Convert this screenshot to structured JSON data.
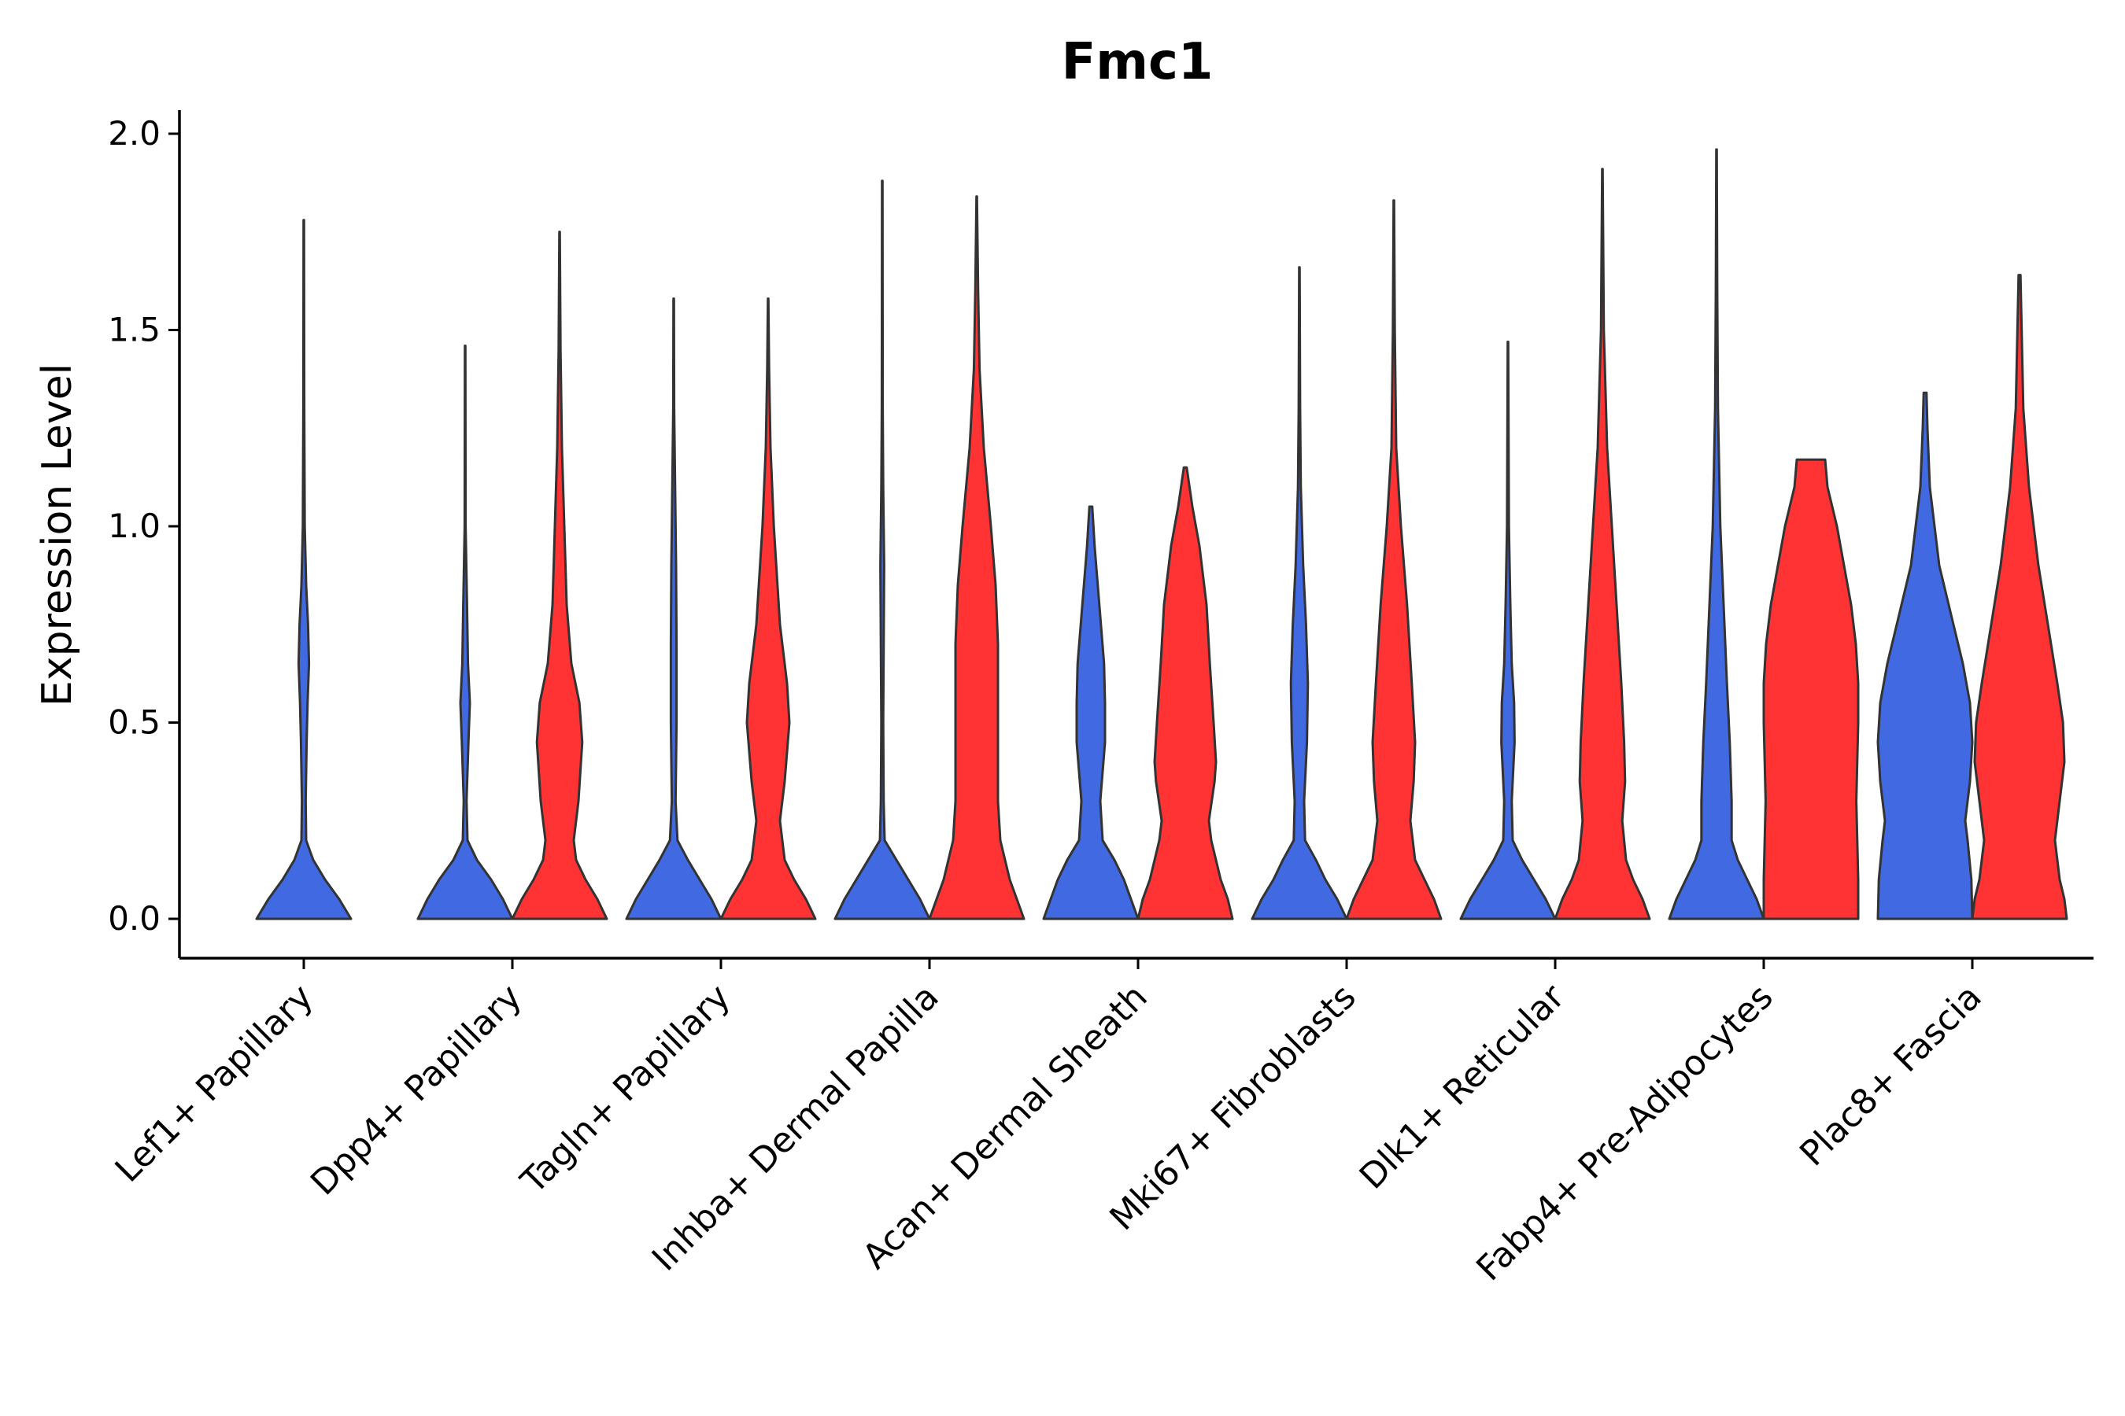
{
  "chart_data": {
    "type": "violin",
    "title": "Fmc1",
    "xlabel": "",
    "ylabel": "Expression Level",
    "ylim": [
      -0.1,
      2.05
    ],
    "yticks": [
      0.0,
      0.5,
      1.0,
      1.5,
      2.0
    ],
    "ytick_labels": [
      "0.0",
      "0.5",
      "1.0",
      "1.5",
      "2.0"
    ],
    "categories": [
      "Lef1+ Papillary",
      "Dpp4+ Papillary",
      "Tagln+ Papillary",
      "Inhba+ Dermal Papilla",
      "Acan+ Dermal Sheath",
      "Mki67+ Fibroblasts",
      "Dlk1+ Reticular",
      "Fabp4+ Pre-Adipocytes",
      "Plac8+ Fascia"
    ],
    "colors": {
      "blue": "#4169E1",
      "red": "#FF3333",
      "outline": "#333333"
    },
    "violins": [
      {
        "category": "Lef1+ Papillary",
        "color": "blue",
        "max": 1.78,
        "profile": [
          [
            0.0,
            1.0
          ],
          [
            0.05,
            0.75
          ],
          [
            0.1,
            0.45
          ],
          [
            0.15,
            0.2
          ],
          [
            0.2,
            0.05
          ],
          [
            0.3,
            0.04
          ],
          [
            0.45,
            0.06
          ],
          [
            0.55,
            0.08
          ],
          [
            0.65,
            0.11
          ],
          [
            0.75,
            0.09
          ],
          [
            0.85,
            0.05
          ],
          [
            1.0,
            0.02
          ],
          [
            1.3,
            0.01
          ],
          [
            1.78,
            0.005
          ]
        ]
      },
      {
        "category": "Dpp4+ Papillary",
        "color": "blue",
        "max": 1.46,
        "profile": [
          [
            0.0,
            1.0
          ],
          [
            0.05,
            0.8
          ],
          [
            0.1,
            0.55
          ],
          [
            0.15,
            0.25
          ],
          [
            0.2,
            0.05
          ],
          [
            0.3,
            0.03
          ],
          [
            0.45,
            0.07
          ],
          [
            0.55,
            0.1
          ],
          [
            0.65,
            0.06
          ],
          [
            0.8,
            0.04
          ],
          [
            1.0,
            0.01
          ],
          [
            1.46,
            0.005
          ]
        ]
      },
      {
        "category": "Dpp4+ Papillary",
        "color": "red",
        "max": 1.75,
        "profile": [
          [
            0.0,
            1.0
          ],
          [
            0.05,
            0.8
          ],
          [
            0.1,
            0.55
          ],
          [
            0.15,
            0.35
          ],
          [
            0.2,
            0.3
          ],
          [
            0.3,
            0.4
          ],
          [
            0.45,
            0.48
          ],
          [
            0.55,
            0.42
          ],
          [
            0.65,
            0.25
          ],
          [
            0.8,
            0.15
          ],
          [
            1.0,
            0.1
          ],
          [
            1.2,
            0.05
          ],
          [
            1.45,
            0.02
          ],
          [
            1.75,
            0.005
          ]
        ]
      },
      {
        "category": "Tagln+ Papillary",
        "color": "blue",
        "max": 1.58,
        "profile": [
          [
            0.0,
            1.0
          ],
          [
            0.05,
            0.8
          ],
          [
            0.1,
            0.55
          ],
          [
            0.15,
            0.3
          ],
          [
            0.2,
            0.08
          ],
          [
            0.3,
            0.04
          ],
          [
            0.5,
            0.06
          ],
          [
            0.7,
            0.06
          ],
          [
            0.9,
            0.05
          ],
          [
            1.1,
            0.03
          ],
          [
            1.3,
            0.01
          ],
          [
            1.58,
            0.005
          ]
        ]
      },
      {
        "category": "Tagln+ Papillary",
        "color": "red",
        "max": 1.58,
        "profile": [
          [
            0.0,
            1.0
          ],
          [
            0.05,
            0.8
          ],
          [
            0.1,
            0.55
          ],
          [
            0.15,
            0.35
          ],
          [
            0.25,
            0.25
          ],
          [
            0.35,
            0.35
          ],
          [
            0.5,
            0.45
          ],
          [
            0.6,
            0.4
          ],
          [
            0.75,
            0.25
          ],
          [
            1.0,
            0.12
          ],
          [
            1.2,
            0.05
          ],
          [
            1.4,
            0.02
          ],
          [
            1.58,
            0.005
          ]
        ]
      },
      {
        "category": "Inhba+ Dermal Papilla",
        "color": "blue",
        "max": 1.88,
        "profile": [
          [
            0.0,
            1.0
          ],
          [
            0.05,
            0.8
          ],
          [
            0.1,
            0.55
          ],
          [
            0.15,
            0.3
          ],
          [
            0.2,
            0.05
          ],
          [
            0.3,
            0.03
          ],
          [
            0.5,
            0.02
          ],
          [
            0.7,
            0.03
          ],
          [
            0.9,
            0.04
          ],
          [
            1.1,
            0.02
          ],
          [
            1.3,
            0.01
          ],
          [
            1.88,
            0.005
          ]
        ]
      },
      {
        "category": "Inhba+ Dermal Papilla",
        "color": "red",
        "max": 1.84,
        "profile": [
          [
            0.0,
            1.0
          ],
          [
            0.05,
            0.85
          ],
          [
            0.1,
            0.7
          ],
          [
            0.2,
            0.5
          ],
          [
            0.3,
            0.45
          ],
          [
            0.5,
            0.45
          ],
          [
            0.7,
            0.45
          ],
          [
            0.85,
            0.4
          ],
          [
            1.0,
            0.3
          ],
          [
            1.2,
            0.15
          ],
          [
            1.4,
            0.06
          ],
          [
            1.6,
            0.03
          ],
          [
            1.84,
            0.005
          ]
        ]
      },
      {
        "category": "Acan+ Dermal Sheath",
        "color": "blue",
        "max": 1.05,
        "profile": [
          [
            0.0,
            1.0
          ],
          [
            0.05,
            0.85
          ],
          [
            0.1,
            0.7
          ],
          [
            0.15,
            0.5
          ],
          [
            0.2,
            0.25
          ],
          [
            0.3,
            0.2
          ],
          [
            0.45,
            0.3
          ],
          [
            0.55,
            0.3
          ],
          [
            0.65,
            0.28
          ],
          [
            0.8,
            0.18
          ],
          [
            0.95,
            0.08
          ],
          [
            1.05,
            0.03
          ]
        ]
      },
      {
        "category": "Acan+ Dermal Sheath",
        "color": "red",
        "max": 1.15,
        "profile": [
          [
            0.0,
            1.0
          ],
          [
            0.05,
            0.9
          ],
          [
            0.1,
            0.75
          ],
          [
            0.2,
            0.55
          ],
          [
            0.25,
            0.5
          ],
          [
            0.35,
            0.62
          ],
          [
            0.4,
            0.65
          ],
          [
            0.5,
            0.6
          ],
          [
            0.65,
            0.52
          ],
          [
            0.8,
            0.45
          ],
          [
            0.95,
            0.3
          ],
          [
            1.05,
            0.15
          ],
          [
            1.15,
            0.03
          ]
        ]
      },
      {
        "category": "Mki67+ Fibroblasts",
        "color": "blue",
        "max": 1.66,
        "profile": [
          [
            0.0,
            1.0
          ],
          [
            0.05,
            0.8
          ],
          [
            0.1,
            0.55
          ],
          [
            0.15,
            0.35
          ],
          [
            0.2,
            0.12
          ],
          [
            0.3,
            0.1
          ],
          [
            0.45,
            0.16
          ],
          [
            0.6,
            0.18
          ],
          [
            0.75,
            0.14
          ],
          [
            0.9,
            0.08
          ],
          [
            1.1,
            0.03
          ],
          [
            1.3,
            0.015
          ],
          [
            1.66,
            0.005
          ]
        ]
      },
      {
        "category": "Mki67+ Fibroblasts",
        "color": "red",
        "max": 1.83,
        "profile": [
          [
            0.0,
            1.0
          ],
          [
            0.05,
            0.85
          ],
          [
            0.1,
            0.65
          ],
          [
            0.15,
            0.45
          ],
          [
            0.25,
            0.35
          ],
          [
            0.35,
            0.42
          ],
          [
            0.45,
            0.45
          ],
          [
            0.6,
            0.38
          ],
          [
            0.8,
            0.28
          ],
          [
            1.0,
            0.15
          ],
          [
            1.2,
            0.05
          ],
          [
            1.5,
            0.02
          ],
          [
            1.83,
            0.005
          ]
        ]
      },
      {
        "category": "Dlk1+ Reticular",
        "color": "blue",
        "max": 1.47,
        "profile": [
          [
            0.0,
            1.0
          ],
          [
            0.05,
            0.8
          ],
          [
            0.1,
            0.55
          ],
          [
            0.15,
            0.3
          ],
          [
            0.2,
            0.1
          ],
          [
            0.3,
            0.08
          ],
          [
            0.45,
            0.14
          ],
          [
            0.55,
            0.13
          ],
          [
            0.65,
            0.08
          ],
          [
            0.8,
            0.05
          ],
          [
            1.0,
            0.02
          ],
          [
            1.47,
            0.005
          ]
        ]
      },
      {
        "category": "Dlk1+ Reticular",
        "color": "red",
        "max": 1.91,
        "profile": [
          [
            0.0,
            1.0
          ],
          [
            0.05,
            0.85
          ],
          [
            0.1,
            0.65
          ],
          [
            0.15,
            0.5
          ],
          [
            0.25,
            0.42
          ],
          [
            0.35,
            0.48
          ],
          [
            0.45,
            0.46
          ],
          [
            0.6,
            0.4
          ],
          [
            0.8,
            0.3
          ],
          [
            1.0,
            0.2
          ],
          [
            1.2,
            0.1
          ],
          [
            1.5,
            0.03
          ],
          [
            1.91,
            0.005
          ]
        ]
      },
      {
        "category": "Fabp4+ Pre-Adipocytes",
        "color": "blue",
        "max": 1.96,
        "profile": [
          [
            0.0,
            1.0
          ],
          [
            0.05,
            0.85
          ],
          [
            0.1,
            0.65
          ],
          [
            0.15,
            0.45
          ],
          [
            0.2,
            0.32
          ],
          [
            0.3,
            0.32
          ],
          [
            0.45,
            0.28
          ],
          [
            0.6,
            0.22
          ],
          [
            0.8,
            0.15
          ],
          [
            1.0,
            0.08
          ],
          [
            1.3,
            0.03
          ],
          [
            1.6,
            0.015
          ],
          [
            1.96,
            0.005
          ]
        ]
      },
      {
        "category": "Fabp4+ Pre-Adipocytes",
        "color": "red",
        "max": 1.17,
        "profile": [
          [
            0.0,
            1.0
          ],
          [
            0.1,
            1.0
          ],
          [
            0.2,
            0.98
          ],
          [
            0.3,
            0.96
          ],
          [
            0.4,
            0.98
          ],
          [
            0.5,
            1.0
          ],
          [
            0.6,
            1.0
          ],
          [
            0.7,
            0.95
          ],
          [
            0.8,
            0.85
          ],
          [
            0.9,
            0.7
          ],
          [
            1.0,
            0.55
          ],
          [
            1.1,
            0.35
          ],
          [
            1.17,
            0.3
          ]
        ]
      },
      {
        "category": "Plac8+ Fascia",
        "color": "blue",
        "max": 1.34,
        "profile": [
          [
            0.0,
            1.0
          ],
          [
            0.1,
            0.98
          ],
          [
            0.2,
            0.9
          ],
          [
            0.25,
            0.85
          ],
          [
            0.35,
            0.95
          ],
          [
            0.45,
            1.0
          ],
          [
            0.55,
            0.95
          ],
          [
            0.65,
            0.8
          ],
          [
            0.75,
            0.6
          ],
          [
            0.9,
            0.3
          ],
          [
            1.1,
            0.1
          ],
          [
            1.25,
            0.05
          ],
          [
            1.34,
            0.03
          ]
        ]
      },
      {
        "category": "Plac8+ Fascia",
        "color": "red",
        "max": 1.64,
        "profile": [
          [
            0.0,
            1.0
          ],
          [
            0.05,
            0.95
          ],
          [
            0.1,
            0.85
          ],
          [
            0.2,
            0.75
          ],
          [
            0.3,
            0.85
          ],
          [
            0.4,
            0.95
          ],
          [
            0.5,
            0.92
          ],
          [
            0.6,
            0.8
          ],
          [
            0.75,
            0.6
          ],
          [
            0.9,
            0.4
          ],
          [
            1.1,
            0.2
          ],
          [
            1.3,
            0.08
          ],
          [
            1.64,
            0.02
          ]
        ]
      }
    ]
  }
}
